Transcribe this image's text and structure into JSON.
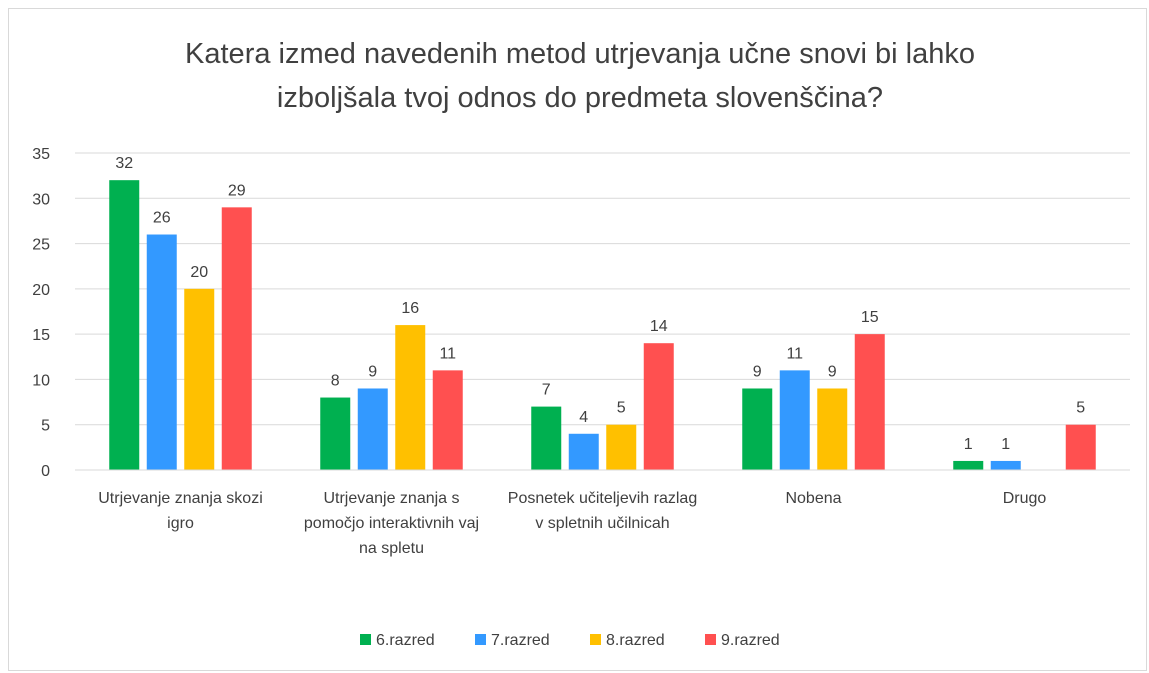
{
  "chart_data": {
    "type": "bar",
    "title": "Katera izmed navedenih metod utrjevanja učne snovi bi lahko izboljšala tvoj odnos do predmeta slovenščina?",
    "categories": [
      "Utrjevanje znanja skozi igro",
      "Utrjevanje znanja s pomočjo interaktivnih vaj na spletu",
      "Posnetek učiteljevih razlag v spletnih učilnicah",
      "Nobena",
      "Drugo"
    ],
    "series": [
      {
        "name": "6.razred",
        "color": "#00b050",
        "values": [
          32,
          8,
          7,
          9,
          1
        ]
      },
      {
        "name": "7.razred",
        "color": "#3399ff",
        "values": [
          26,
          9,
          4,
          11,
          1
        ]
      },
      {
        "name": "8.razred",
        "color": "#ffc000",
        "values": [
          20,
          16,
          5,
          9,
          null
        ]
      },
      {
        "name": "9.razred",
        "color": "#ff5050",
        "values": [
          29,
          11,
          14,
          15,
          5
        ]
      }
    ],
    "ylim": [
      0,
      35
    ],
    "yticks": [
      0,
      5,
      10,
      15,
      20,
      25,
      30,
      35
    ],
    "grid": true,
    "legend": "bottom"
  }
}
